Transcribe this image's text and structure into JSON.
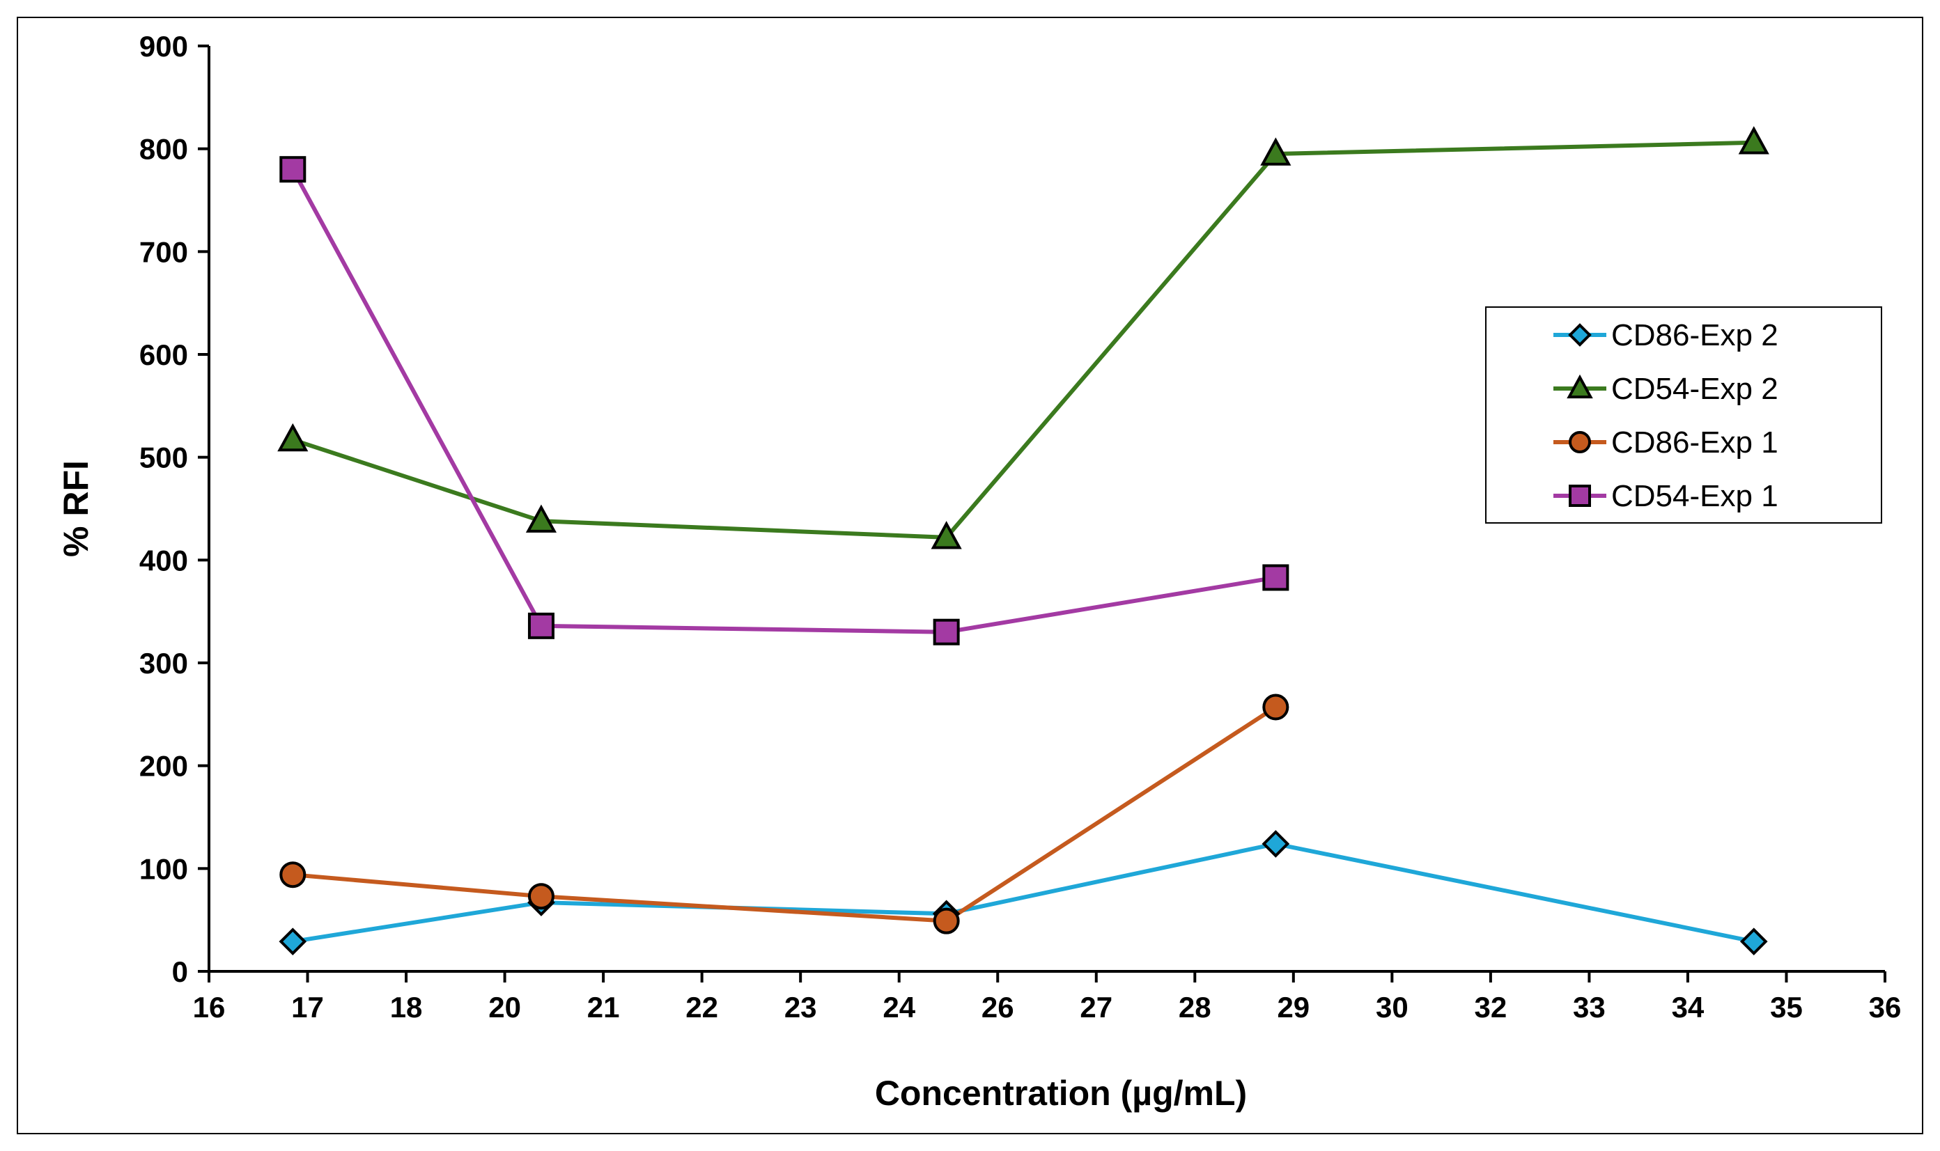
{
  "chart_data": {
    "type": "line",
    "title": "",
    "xlabel": "Concentration (µg/mL)",
    "ylabel": "% RFI",
    "x_tick_labels": [
      "16",
      "17",
      "18",
      "20",
      "21",
      "22",
      "23",
      "24",
      "26",
      "27",
      "28",
      "29",
      "30",
      "32",
      "33",
      "34",
      "35",
      "36"
    ],
    "y_tick_labels": [
      "0",
      "100",
      "200",
      "300",
      "400",
      "500",
      "600",
      "700",
      "800",
      "900"
    ],
    "ylim": [
      0,
      900
    ],
    "x_note": "x axis is categorical; data points sit at fractional category positions (0 = '16', 17 = '36')",
    "legend_position": "right",
    "series": [
      {
        "name": "CD86-Exp 2",
        "color": "#1FA7D8",
        "marker": "diamond",
        "x_pos": [
          0.85,
          3.37,
          7.48,
          10.82,
          15.67
        ],
        "values": [
          29,
          67,
          56,
          124,
          29
        ]
      },
      {
        "name": "CD54-Exp 2",
        "color": "#3B7A1E",
        "marker": "triangle",
        "x_pos": [
          0.85,
          3.37,
          7.48,
          10.82,
          15.67
        ],
        "values": [
          517,
          438,
          422,
          795,
          806
        ]
      },
      {
        "name": "CD86-Exp 1",
        "color": "#C55A1E",
        "marker": "circle",
        "x_pos": [
          0.85,
          3.37,
          7.48,
          10.82
        ],
        "values": [
          94,
          73,
          49,
          257
        ]
      },
      {
        "name": "CD54-Exp 1",
        "color": "#A33AA3",
        "marker": "square",
        "x_pos": [
          0.85,
          3.37,
          7.48,
          10.82
        ],
        "values": [
          780,
          336,
          330,
          383
        ]
      }
    ]
  }
}
